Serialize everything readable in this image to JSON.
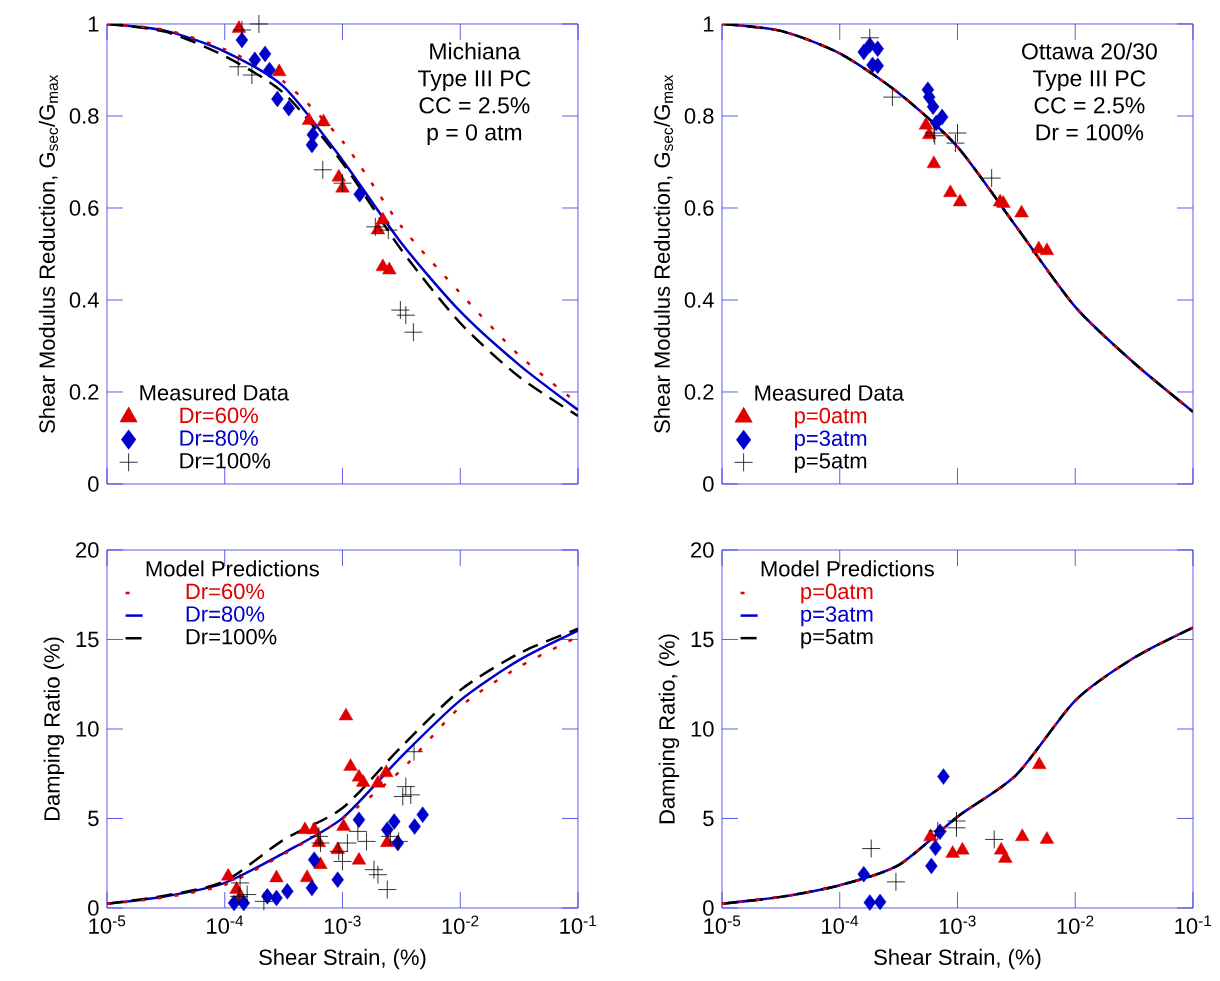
{
  "chart_data": [
    {
      "type": "line",
      "ylabel": "Shear Modulus Reduction, G$_{sec}$/G$_{max}$",
      "log": "x",
      "xlim": [
        1e-05,
        0.1
      ],
      "ylim": [
        0,
        1
      ],
      "tick_labels": "y",
      "xticks": [
        {
          "value": 1e-05,
          "label": null
        },
        {
          "value": 0.0001,
          "label": null
        },
        {
          "value": 0.001,
          "label": null
        },
        {
          "value": 0.01,
          "label": null
        },
        {
          "value": 0.1,
          "label": null
        }
      ],
      "yticks": [
        0,
        0.2,
        0.4,
        0.6,
        0.8,
        1
      ],
      "legend": "bottom left",
      "legend_title": "Measured Data",
      "annotations": [
        "Michiana",
        "Type III PC",
        "CC = 2.5%",
        "p = 0 atm"
      ],
      "series": [
        {
          "type": "line",
          "color": "#e00000",
          "line_style": "dotted",
          "x": [
            1e-05,
            3.16e-05,
            0.0001,
            0.000316,
            0.001,
            0.00316,
            0.01,
            0.0316,
            0.1
          ],
          "values": [
            1,
            0.987,
            0.945,
            0.875,
            0.745,
            0.56,
            0.415,
            0.28,
            0.175
          ]
        },
        {
          "type": "line",
          "color": "#0000cc",
          "line_style": "solid",
          "x": [
            1e-05,
            3.16e-05,
            0.0001,
            0.000316,
            0.001,
            0.00316,
            0.01,
            0.0316,
            0.1
          ],
          "values": [
            1,
            0.985,
            0.94,
            0.864,
            0.704,
            0.524,
            0.375,
            0.259,
            0.161
          ]
        },
        {
          "type": "line",
          "color": "#000000",
          "line_style": "dashed",
          "x": [
            1e-05,
            3.16e-05,
            0.0001,
            0.000316,
            0.001,
            0.00316,
            0.01,
            0.0316,
            0.1
          ],
          "values": [
            1,
            0.983,
            0.93,
            0.85,
            0.698,
            0.509,
            0.35,
            0.233,
            0.148
          ]
        },
        {
          "type": "scatter",
          "name": "Dr=60%",
          "color": "#e00000",
          "marker": "triangle",
          "x": [
            0.000132,
            0.00029,
            0.00052,
            0.00069,
            0.00093,
            0.001,
            0.0022,
            0.002,
            0.0022,
            0.0025
          ],
          "values": [
            0.99,
            0.896,
            0.79,
            0.787,
            0.667,
            0.643,
            0.574,
            0.552,
            0.472,
            0.465
          ]
        },
        {
          "type": "scatter",
          "name": "Dr=80%",
          "color": "#0000cc",
          "marker": "diamond",
          "x": [
            0.00014,
            0.00018,
            0.00022,
            0.00024,
            0.00028,
            0.00035,
            0.00056,
            0.00055,
            0.0014
          ],
          "values": [
            0.965,
            0.922,
            0.935,
            0.9,
            0.837,
            0.817,
            0.759,
            0.737,
            0.63
          ]
        },
        {
          "type": "scatter",
          "name": "Dr=100%",
          "color": "#000000",
          "marker": "cross",
          "x": [
            0.000195,
            0.00014,
            0.00013,
            0.00017,
            0.00068,
            0.001,
            0.0019,
            0.00245,
            0.0031,
            0.00345,
            0.004
          ],
          "values": [
            1.0,
            0.987,
            0.907,
            0.889,
            0.683,
            0.654,
            0.559,
            0.552,
            0.378,
            0.367,
            0.33
          ]
        }
      ]
    },
    {
      "type": "line",
      "ylabel": "Shear Modulus Reduction, G$_{sec}$/G$_{max}$",
      "log": "x",
      "xlim": [
        1e-05,
        0.1
      ],
      "ylim": [
        0,
        1
      ],
      "tick_labels": "y",
      "xticks": [
        {
          "value": 1e-05,
          "label": null
        },
        {
          "value": 0.0001,
          "label": null
        },
        {
          "value": 0.001,
          "label": null
        },
        {
          "value": 0.01,
          "label": null
        },
        {
          "value": 0.1,
          "label": null
        }
      ],
      "yticks": [
        0,
        0.2,
        0.4,
        0.6,
        0.8,
        1
      ],
      "legend": "bottom left",
      "legend_title": "Measured Data",
      "annotations": [
        "Ottawa 20/30",
        "Type III PC",
        "CC = 2.5%",
        "Dr = 100%"
      ],
      "series": [
        {
          "type": "line",
          "color": "#0000cc",
          "line_style": "solid",
          "x": [
            1e-05,
            3.16e-05,
            0.0001,
            0.000316,
            0.001,
            0.00316,
            0.01,
            0.0316,
            0.1
          ],
          "values": [
            1,
            0.985,
            0.936,
            0.85,
            0.733,
            0.559,
            0.385,
            0.263,
            0.157
          ]
        },
        {
          "type": "line",
          "color": "#000000",
          "line_style": "dashed",
          "x": [
            1e-05,
            3.16e-05,
            0.0001,
            0.000316,
            0.001,
            0.00316,
            0.01,
            0.0316,
            0.1
          ],
          "values": [
            1,
            0.985,
            0.936,
            0.85,
            0.733,
            0.559,
            0.385,
            0.263,
            0.157
          ]
        },
        {
          "type": "line",
          "color": "#e00000",
          "line_style": "dotted",
          "x": [
            1e-05,
            3.16e-05,
            0.0001,
            0.000316,
            0.001,
            0.00316,
            0.01,
            0.0316,
            0.1
          ],
          "values": [
            1,
            0.985,
            0.936,
            0.85,
            0.733,
            0.559,
            0.385,
            0.263,
            0.157
          ]
        },
        {
          "type": "scatter",
          "name": "p=0atm",
          "color": "#e00000",
          "marker": "triangle",
          "x": [
            0.00054,
            0.000575,
            0.00063,
            0.00087,
            0.00105,
            0.0023,
            0.00245,
            0.0035,
            0.0049,
            0.00575
          ],
          "values": [
            0.78,
            0.759,
            0.696,
            0.633,
            0.613,
            0.613,
            0.61,
            0.589,
            0.511,
            0.507
          ]
        },
        {
          "type": "scatter",
          "name": "p=3atm",
          "color": "#0000cc",
          "marker": "diamond",
          "x": [
            0.00016,
            0.00018,
            0.00021,
            0.00021,
            0.00019,
            0.00056,
            0.000575,
            0.00062,
            0.00074,
            0.00066
          ],
          "values": [
            0.939,
            0.954,
            0.946,
            0.909,
            0.911,
            0.857,
            0.841,
            0.82,
            0.798,
            0.785
          ]
        },
        {
          "type": "scatter",
          "name": "p=5atm",
          "color": "#000000",
          "marker": "cross",
          "x": [
            0.00018,
            0.00028,
            0.00063,
            0.00064,
            0.001,
            0.00096,
            0.00195
          ],
          "values": [
            0.97,
            0.841,
            0.763,
            0.757,
            0.763,
            0.741,
            0.665
          ]
        }
      ]
    },
    {
      "type": "line",
      "xlabel": "Shear Strain, (%)",
      "ylabel": "Damping Ratio (%)",
      "log": "x",
      "xlim": [
        1e-05,
        0.1
      ],
      "ylim": [
        0,
        20
      ],
      "xticks": [
        {
          "value": 1e-05,
          "label": "10$^{-5}$"
        },
        {
          "value": 0.0001,
          "label": "10$^{-4}$"
        },
        {
          "value": 0.001,
          "label": "10$^{-3}$"
        },
        {
          "value": 0.01,
          "label": "10$^{-2}$"
        },
        {
          "value": 0.1,
          "label": "10$^{-1}$"
        }
      ],
      "yticks": [
        0,
        5,
        10,
        15,
        20
      ],
      "legend": "top left",
      "legend_title": "Model Predictions",
      "series": [
        {
          "type": "line",
          "name": "Dr=60%",
          "color": "#e00000",
          "line_style": "dotted",
          "x": [
            1e-05,
            3.16e-05,
            0.0001,
            0.000316,
            0.001,
            0.00316,
            0.01,
            0.0316,
            0.1
          ],
          "values": [
            0.23,
            0.6,
            1.3,
            3.0,
            5.0,
            7.71,
            11.24,
            13.47,
            15.15
          ]
        },
        {
          "type": "line",
          "name": "Dr=80%",
          "color": "#0000cc",
          "line_style": "solid",
          "x": [
            1e-05,
            3.16e-05,
            0.0001,
            0.000316,
            0.001,
            0.00316,
            0.01,
            0.0316,
            0.1
          ],
          "values": [
            0.23,
            0.65,
            1.4,
            3.07,
            5.02,
            8.46,
            11.6,
            13.85,
            15.5
          ]
        },
        {
          "type": "line",
          "name": "Dr=100%",
          "color": "#000000",
          "line_style": "dashed",
          "x": [
            1e-05,
            3.16e-05,
            0.0001,
            0.000316,
            0.001,
            0.00316,
            0.01,
            0.0316,
            0.1
          ],
          "values": [
            0.23,
            0.7,
            1.5,
            3.81,
            5.58,
            9.01,
            12.17,
            14.22,
            15.6
          ]
        },
        {
          "type": "scatter",
          "color": "#e00000",
          "marker": "triangle",
          "x": [
            0.000107,
            0.000126,
            0.000135,
            0.000275,
            0.00048,
            0.000575,
            0.00065,
            0.00063,
            0.0005,
            0.00107,
            0.00117,
            0.00138,
            0.0015,
            0.00102,
            0.00091,
            0.00138,
            0.002,
            0.00235,
            0.0024
          ],
          "values": [
            1.77,
            1.03,
            0.63,
            1.68,
            4.37,
            4.37,
            2.42,
            3.65,
            1.69,
            10.72,
            7.9,
            7.31,
            7.01,
            4.55,
            3.26,
            2.66,
            6.97,
            7.55,
            3.65
          ]
        },
        {
          "type": "scatter",
          "color": "#0000cc",
          "marker": "diamond",
          "x": [
            0.00012,
            0.000145,
            0.00023,
            0.000275,
            0.00034,
            0.000575,
            0.00055,
            0.00091,
            0.00138,
            0.0024,
            0.00275,
            0.00295,
            0.0041,
            0.0048
          ],
          "values": [
            0.28,
            0.28,
            0.65,
            0.56,
            0.93,
            2.7,
            1.12,
            1.58,
            4.93,
            4.37,
            4.83,
            3.63,
            4.55,
            5.21
          ]
        },
        {
          "type": "scatter",
          "color": "#000000",
          "marker": "cross",
          "x": [
            0.000135,
            0.000132,
            0.000155,
            0.000215,
            0.00063,
            0.00065,
            0.0011,
            0.00135,
            0.0016,
            0.00093,
            0.001,
            0.00185,
            0.002,
            0.0024,
            0.00255,
            0.003,
            0.00345,
            0.00325,
            0.0038,
            0.00405
          ],
          "values": [
            1.4,
            0.65,
            0.75,
            0.37,
            4.0,
            3.63,
            3.63,
            4.28,
            3.72,
            3.16,
            2.6,
            2.14,
            1.86,
            1.03,
            4.0,
            3.72,
            6.78,
            6.23,
            6.32,
            8.73
          ]
        }
      ]
    },
    {
      "type": "line",
      "xlabel": "Shear Strain, (%)",
      "ylabel": "Damping Ratio, (%)",
      "log": "x",
      "xlim": [
        1e-05,
        0.1
      ],
      "ylim": [
        0,
        20
      ],
      "xticks": [
        {
          "value": 1e-05,
          "label": "10$^{-5}$"
        },
        {
          "value": 0.0001,
          "label": "10$^{-4}$"
        },
        {
          "value": 0.001,
          "label": "10$^{-3}$"
        },
        {
          "value": 0.01,
          "label": "10$^{-2}$"
        },
        {
          "value": 0.1,
          "label": "10$^{-1}$"
        }
      ],
      "yticks": [
        0,
        5,
        10,
        15,
        20
      ],
      "legend": "top left",
      "legend_title": "Model Predictions",
      "series": [
        {
          "type": "line",
          "name": "p=0atm",
          "color": "#e00000",
          "line_style": "dotted",
          "x": [
            1e-05,
            3.16e-05,
            0.0001,
            0.000316,
            0.001,
            0.00316,
            0.01,
            0.0316,
            0.1
          ],
          "values": [
            0.24,
            0.62,
            1.27,
            2.39,
            5.1,
            7.44,
            11.59,
            13.98,
            15.66
          ]
        },
        {
          "type": "line",
          "name": "p=3atm",
          "color": "#0000cc",
          "line_style": "solid",
          "x": [
            1e-05,
            3.16e-05,
            0.0001,
            0.000316,
            0.001,
            0.00316,
            0.01,
            0.0316,
            0.1
          ],
          "values": [
            0.24,
            0.62,
            1.27,
            2.39,
            5.1,
            7.44,
            11.59,
            13.98,
            15.66
          ]
        },
        {
          "type": "line",
          "name": "p=5atm",
          "color": "#000000",
          "line_style": "dashed",
          "x": [
            1e-05,
            3.16e-05,
            0.0001,
            0.000316,
            0.001,
            0.00316,
            0.01,
            0.0316,
            0.1
          ],
          "values": [
            0.24,
            0.62,
            1.27,
            2.39,
            5.1,
            7.44,
            11.59,
            13.98,
            15.66
          ]
        },
        {
          "type": "scatter",
          "color": "#e00000",
          "marker": "triangle",
          "x": [
            0.00495,
            0.00355,
            0.00575,
            0.00235,
            0.00255,
            0.00091,
            0.0011,
            0.00059
          ],
          "values": [
            8.0,
            3.98,
            3.83,
            3.23,
            2.77,
            3.05,
            3.23,
            3.98
          ]
        },
        {
          "type": "scatter",
          "color": "#0000cc",
          "marker": "diamond",
          "x": [
            0.00076,
            0.00071,
            0.00065,
            0.0006,
            0.00016,
            0.00018,
            0.00022
          ],
          "values": [
            7.34,
            4.26,
            3.36,
            2.35,
            1.89,
            0.3,
            0.34
          ]
        },
        {
          "type": "scatter",
          "color": "#000000",
          "marker": "cross",
          "x": [
            0.000185,
            0.0003,
            0.00068,
            0.00098,
            0.00098,
            0.00205
          ],
          "values": [
            3.32,
            1.46,
            4.3,
            4.48,
            4.86,
            3.83
          ]
        }
      ]
    }
  ]
}
